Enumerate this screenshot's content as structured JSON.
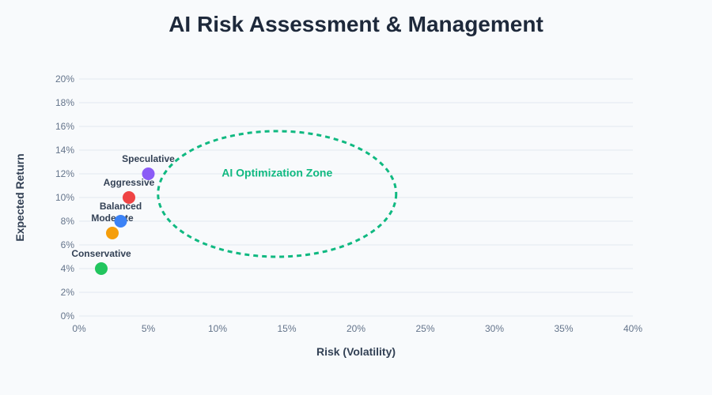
{
  "chart_data": {
    "type": "scatter",
    "title": "AI Risk Assessment & Management",
    "xlabel": "Risk (Volatility)",
    "ylabel": "Expected Return",
    "xlim": [
      0,
      40
    ],
    "ylim": [
      0,
      20
    ],
    "x_ticks": [
      0,
      5,
      10,
      15,
      20,
      25,
      30,
      35,
      40
    ],
    "y_ticks": [
      0,
      2,
      4,
      6,
      8,
      10,
      12,
      14,
      16,
      18,
      20
    ],
    "x_tick_labels": [
      "0%",
      "5%",
      "10%",
      "15%",
      "20%",
      "25%",
      "30%",
      "35%",
      "40%"
    ],
    "y_tick_labels": [
      "0%",
      "2%",
      "4%",
      "6%",
      "8%",
      "10%",
      "12%",
      "14%",
      "16%",
      "18%",
      "20%"
    ],
    "grid": true,
    "points": [
      {
        "label": "Conservative",
        "x": 1.6,
        "y": 4,
        "color": "#22c55e"
      },
      {
        "label": "Moderate",
        "x": 2.4,
        "y": 7,
        "color": "#f59e0b"
      },
      {
        "label": "Balanced",
        "x": 3.0,
        "y": 8,
        "color": "#3b82f6"
      },
      {
        "label": "Aggressive",
        "x": 3.6,
        "y": 10,
        "color": "#ef4444"
      },
      {
        "label": "Speculative",
        "x": 5.0,
        "y": 12,
        "color": "#8b5cf6"
      }
    ],
    "annotations": [
      {
        "type": "ellipse",
        "label": "AI Optimization Zone",
        "center_x": 14.3,
        "center_y": 10.3,
        "radius_x": 8.6,
        "radius_y": 5.3,
        "color": "#10b981",
        "dashed": true
      }
    ]
  }
}
